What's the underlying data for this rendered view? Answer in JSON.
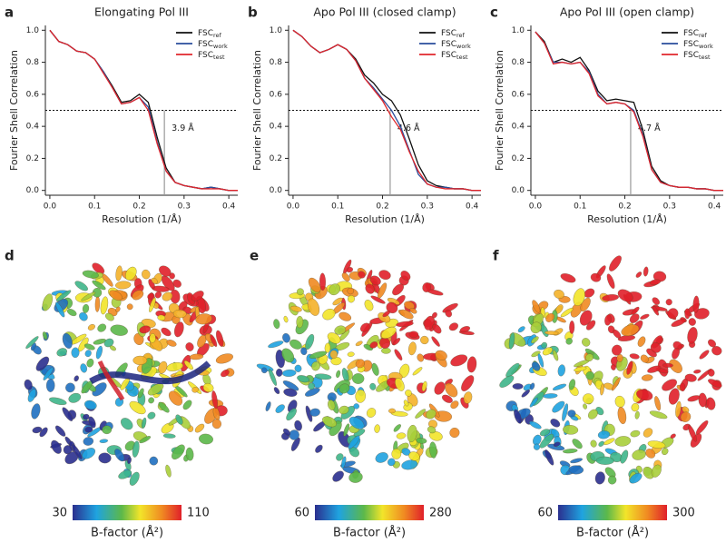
{
  "chart_data": [
    {
      "type": "line",
      "panel_label": "a",
      "title": "Elongating Pol III",
      "xlabel": "Resolution (1/Å)",
      "ylabel": "Fourier Shell Correlation",
      "x": [
        0,
        0.02,
        0.04,
        0.06,
        0.08,
        0.1,
        0.12,
        0.14,
        0.16,
        0.18,
        0.2,
        0.22,
        0.24,
        0.26,
        0.28,
        0.3,
        0.32,
        0.34,
        0.36,
        0.38,
        0.4,
        0.42
      ],
      "series": [
        {
          "name": "FSC",
          "subscript": "ref",
          "color": "#111111",
          "values": [
            1.0,
            0.93,
            0.91,
            0.87,
            0.86,
            0.82,
            0.74,
            0.65,
            0.55,
            0.56,
            0.6,
            0.55,
            0.33,
            0.14,
            0.05,
            0.03,
            0.02,
            0.01,
            0.02,
            0.01,
            0.0,
            0.0
          ]
        },
        {
          "name": "FSC",
          "subscript": "work",
          "color": "#2a4d9b",
          "values": [
            1.0,
            0.93,
            0.91,
            0.87,
            0.86,
            0.82,
            0.74,
            0.64,
            0.54,
            0.55,
            0.58,
            0.52,
            0.3,
            0.12,
            0.05,
            0.03,
            0.02,
            0.01,
            0.02,
            0.01,
            0.0,
            0.0
          ]
        },
        {
          "name": "FSC",
          "subscript": "test",
          "color": "#e0262b",
          "values": [
            1.0,
            0.93,
            0.91,
            0.87,
            0.86,
            0.82,
            0.73,
            0.64,
            0.54,
            0.55,
            0.58,
            0.5,
            0.29,
            0.12,
            0.05,
            0.03,
            0.02,
            0.01,
            0.01,
            0.01,
            0.0,
            0.0
          ]
        }
      ],
      "threshold": 0.5,
      "resolution_marker": {
        "x": 0.256,
        "label": "3.9 Å"
      },
      "xlim": [
        -0.01,
        0.42
      ],
      "xticks": [
        {
          "value": 0,
          "label": "0.0"
        },
        0.1,
        0.2,
        0.3,
        0.4
      ],
      "ylim": [
        -0.03,
        1.03
      ],
      "yticks": [
        {
          "value": 0,
          "label": "0.0"
        },
        0.2,
        0.4,
        0.6,
        0.8,
        {
          "value": 1,
          "label": "1.0"
        }
      ],
      "legend": "upper right"
    },
    {
      "type": "line",
      "panel_label": "b",
      "title": "Apo Pol III (closed clamp)",
      "xlabel": "Resolution (1/Å)",
      "ylabel": "Fourier Shell Correlation",
      "x": [
        0,
        0.02,
        0.04,
        0.06,
        0.08,
        0.1,
        0.12,
        0.14,
        0.16,
        0.18,
        0.2,
        0.22,
        0.24,
        0.26,
        0.28,
        0.3,
        0.32,
        0.34,
        0.36,
        0.38,
        0.4,
        0.42
      ],
      "series": [
        {
          "name": "FSC",
          "subscript": "ref",
          "color": "#111111",
          "values": [
            1.0,
            0.96,
            0.9,
            0.86,
            0.88,
            0.91,
            0.88,
            0.82,
            0.72,
            0.67,
            0.6,
            0.56,
            0.47,
            0.32,
            0.16,
            0.06,
            0.03,
            0.02,
            0.01,
            0.01,
            0.0,
            0.0
          ]
        },
        {
          "name": "FSC",
          "subscript": "work",
          "color": "#2a4d9b",
          "values": [
            1.0,
            0.96,
            0.9,
            0.86,
            0.88,
            0.91,
            0.88,
            0.81,
            0.7,
            0.64,
            0.57,
            0.5,
            0.4,
            0.25,
            0.1,
            0.04,
            0.02,
            0.02,
            0.01,
            0.01,
            0.0,
            0.0
          ]
        },
        {
          "name": "FSC",
          "subscript": "test",
          "color": "#e0262b",
          "values": [
            1.0,
            0.96,
            0.9,
            0.86,
            0.88,
            0.91,
            0.88,
            0.81,
            0.7,
            0.63,
            0.56,
            0.46,
            0.38,
            0.24,
            0.12,
            0.04,
            0.02,
            0.01,
            0.01,
            0.01,
            0.0,
            0.0
          ]
        }
      ],
      "threshold": 0.5,
      "resolution_marker": {
        "x": 0.217,
        "label": "4.6 Å"
      },
      "xlim": [
        -0.01,
        0.42
      ],
      "xticks": [
        {
          "value": 0,
          "label": "0.0"
        },
        0.1,
        0.2,
        0.3,
        0.4
      ],
      "ylim": [
        -0.03,
        1.03
      ],
      "yticks": [
        {
          "value": 0,
          "label": "0.0"
        },
        0.2,
        0.4,
        0.6,
        0.8,
        {
          "value": 1,
          "label": "1.0"
        }
      ],
      "legend": "upper right"
    },
    {
      "type": "line",
      "panel_label": "c",
      "title": "Apo Pol III (open clamp)",
      "xlabel": "Resolution (1/Å)",
      "ylabel": "Fourier Shell Correlation",
      "x": [
        0,
        0.02,
        0.04,
        0.06,
        0.08,
        0.1,
        0.12,
        0.14,
        0.16,
        0.18,
        0.2,
        0.22,
        0.24,
        0.26,
        0.28,
        0.3,
        0.32,
        0.34,
        0.36,
        0.38,
        0.4,
        0.42
      ],
      "series": [
        {
          "name": "FSC",
          "subscript": "ref",
          "color": "#111111",
          "values": [
            0.99,
            0.93,
            0.8,
            0.82,
            0.8,
            0.83,
            0.75,
            0.62,
            0.56,
            0.57,
            0.56,
            0.55,
            0.38,
            0.15,
            0.06,
            0.03,
            0.02,
            0.02,
            0.01,
            0.01,
            0.0,
            0.0
          ]
        },
        {
          "name": "FSC",
          "subscript": "work",
          "color": "#2a4d9b",
          "values": [
            0.99,
            0.92,
            0.8,
            0.8,
            0.79,
            0.8,
            0.74,
            0.6,
            0.54,
            0.55,
            0.54,
            0.5,
            0.35,
            0.13,
            0.05,
            0.03,
            0.02,
            0.02,
            0.01,
            0.01,
            0.0,
            0.0
          ]
        },
        {
          "name": "FSC",
          "subscript": "test",
          "color": "#e0262b",
          "values": [
            0.99,
            0.92,
            0.79,
            0.8,
            0.79,
            0.8,
            0.73,
            0.59,
            0.54,
            0.55,
            0.54,
            0.49,
            0.34,
            0.13,
            0.05,
            0.03,
            0.02,
            0.02,
            0.01,
            0.01,
            0.0,
            0.0
          ]
        }
      ],
      "threshold": 0.5,
      "resolution_marker": {
        "x": 0.213,
        "label": "4.7 Å"
      },
      "xlim": [
        -0.01,
        0.42
      ],
      "xticks": [
        {
          "value": 0,
          "label": "0.0"
        },
        0.1,
        0.2,
        0.3,
        0.4
      ],
      "ylim": [
        -0.03,
        1.03
      ],
      "yticks": [
        {
          "value": 0,
          "label": "0.0"
        },
        0.2,
        0.4,
        0.6,
        0.8,
        {
          "value": 1,
          "label": "1.0"
        }
      ],
      "legend": "upper right"
    }
  ],
  "structure_panels": [
    {
      "panel_label": "d",
      "colorbar": {
        "min": 30,
        "max": 110,
        "title": "B-factor (Å²)"
      }
    },
    {
      "panel_label": "e",
      "colorbar": {
        "min": 60,
        "max": 280,
        "title": "B-factor (Å²)"
      }
    },
    {
      "panel_label": "f",
      "colorbar": {
        "min": 60,
        "max": 300,
        "title": "B-factor (Å²)"
      }
    }
  ]
}
